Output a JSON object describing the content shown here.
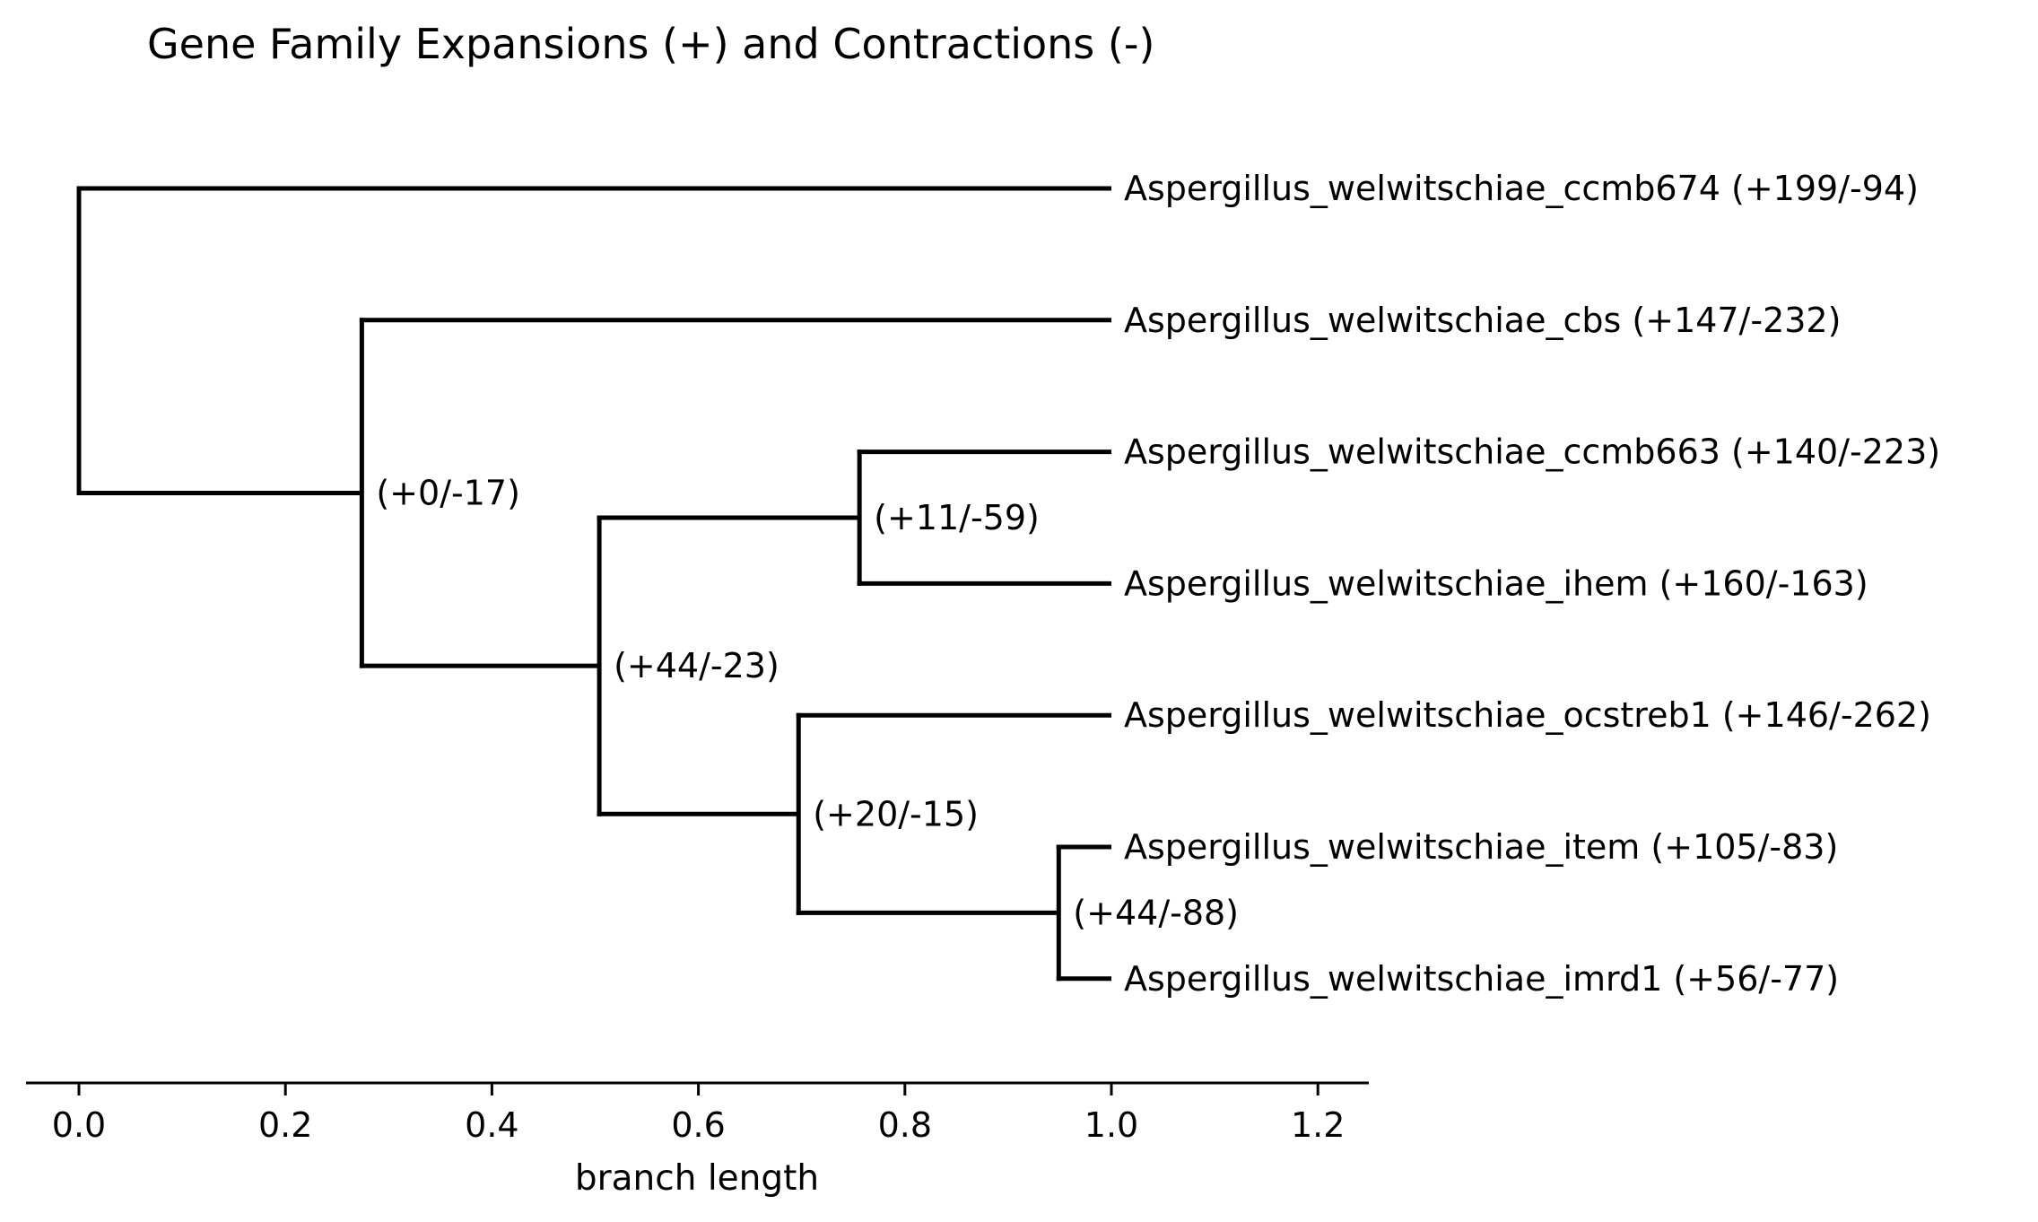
{
  "chart_data": {
    "type": "dendrogram",
    "title": "Gene Family Expansions (+) and Contractions (-)",
    "xlabel": "branch length",
    "xlim": [
      -0.05,
      1.25
    ],
    "xticks": [
      "0.0",
      "0.2",
      "0.4",
      "0.6",
      "0.8",
      "1.0",
      "1.2"
    ],
    "grid": false,
    "leaves": [
      {
        "label": "Aspergillus_welwitschiae_ccmb674 (+199/-94)",
        "x": 1.0
      },
      {
        "label": "Aspergillus_welwitschiae_cbs (+147/-232)",
        "x": 1.0
      },
      {
        "label": "Aspergillus_welwitschiae_ccmb663 (+140/-223)",
        "x": 1.0
      },
      {
        "label": "Aspergillus_welwitschiae_ihem (+160/-163)",
        "x": 1.0
      },
      {
        "label": "Aspergillus_welwitschiae_ocstreb1 (+146/-262)",
        "x": 1.0
      },
      {
        "label": "Aspergillus_welwitschiae_item (+105/-83)",
        "x": 1.0
      },
      {
        "label": "Aspergillus_welwitschiae_imrd1 (+56/-77)",
        "x": 1.0
      }
    ],
    "nodes": [
      {
        "id": "root",
        "x": 0.0,
        "children": [
          0,
          "n1"
        ]
      },
      {
        "id": "n1",
        "x": 0.274,
        "label": "(+0/-17)",
        "children": [
          1,
          "n2"
        ]
      },
      {
        "id": "n2",
        "x": 0.504,
        "label": "(+44/-23)",
        "children": [
          "n3",
          "n4"
        ]
      },
      {
        "id": "n3",
        "x": 0.756,
        "label": "(+11/-59)",
        "children": [
          2,
          3
        ]
      },
      {
        "id": "n4",
        "x": 0.697,
        "label": "(+20/-15)",
        "children": [
          4,
          "n5"
        ]
      },
      {
        "id": "n5",
        "x": 0.949,
        "label": "(+44/-88)",
        "children": [
          5,
          6
        ]
      }
    ]
  }
}
